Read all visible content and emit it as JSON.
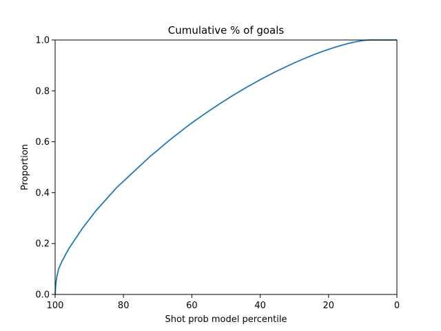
{
  "chart_data": {
    "type": "line",
    "title": "Cumulative % of goals",
    "xlabel": "Shot prob model percentile",
    "ylabel": "Proportion",
    "xlim": [
      100,
      0
    ],
    "ylim": [
      0,
      1.0
    ],
    "x_inverted": true,
    "grid": false,
    "legend": "none",
    "xticks": [
      100,
      80,
      60,
      40,
      20,
      0
    ],
    "xtick_labels": [
      "100",
      "80",
      "60",
      "40",
      "20",
      "0"
    ],
    "yticks": [
      0,
      0.2,
      0.4,
      0.6,
      0.8,
      1.0
    ],
    "ytick_labels": [
      "0.0",
      "0.2",
      "0.4",
      "0.6",
      "0.8",
      "1.0"
    ],
    "series": [
      {
        "color": "#1f77b4",
        "x": [
          100,
          99.8,
          99.5,
          99,
          98,
          97,
          96,
          95,
          94,
          92,
          90,
          88,
          86,
          84,
          82,
          80,
          78,
          76,
          74,
          72,
          70,
          68,
          66,
          64,
          62,
          60,
          58,
          56,
          54,
          52,
          50,
          48,
          46,
          44,
          42,
          40,
          38,
          36,
          34,
          32,
          30,
          28,
          26,
          24,
          22,
          20,
          18,
          16,
          14,
          12,
          10,
          8,
          6,
          4,
          2,
          0
        ],
        "y": [
          0.0,
          0.04,
          0.07,
          0.1,
          0.13,
          0.155,
          0.18,
          0.2,
          0.22,
          0.26,
          0.295,
          0.33,
          0.36,
          0.39,
          0.42,
          0.445,
          0.47,
          0.495,
          0.52,
          0.545,
          0.567,
          0.59,
          0.612,
          0.633,
          0.654,
          0.674,
          0.693,
          0.712,
          0.73,
          0.748,
          0.765,
          0.782,
          0.798,
          0.814,
          0.829,
          0.844,
          0.858,
          0.872,
          0.885,
          0.898,
          0.91,
          0.922,
          0.933,
          0.944,
          0.954,
          0.963,
          0.972,
          0.98,
          0.987,
          0.993,
          0.998,
          1.0,
          1.0,
          1.0,
          1.0,
          1.0
        ]
      }
    ]
  }
}
